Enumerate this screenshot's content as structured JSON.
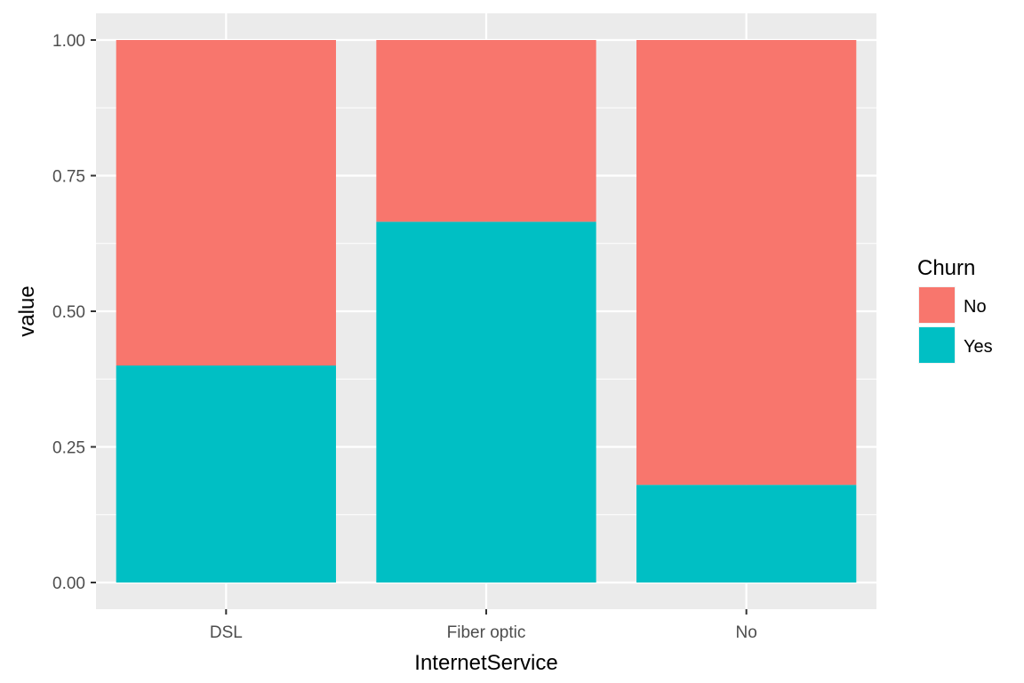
{
  "chart_data": {
    "type": "bar",
    "stacked": true,
    "xlabel": "InternetService",
    "ylabel": "value",
    "categories": [
      "DSL",
      "Fiber optic",
      "No"
    ],
    "ylim": [
      0,
      1
    ],
    "yticks": [
      "0.00",
      "0.25",
      "0.50",
      "0.75",
      "1.00"
    ],
    "ytick_values": [
      0,
      0.25,
      0.5,
      0.75,
      1
    ],
    "series": [
      {
        "name": "Yes",
        "values": [
          0.4,
          0.665,
          0.18
        ]
      },
      {
        "name": "No",
        "values": [
          0.6,
          0.335,
          0.82
        ]
      }
    ],
    "legend": {
      "title": "Churn",
      "entries": [
        "No",
        "Yes"
      ],
      "placement": "right"
    },
    "grid": true,
    "colors": {
      "No": "#F8766D",
      "Yes": "#00BFC4",
      "panel": "#EBEBEB",
      "grid": "#FFFFFF"
    }
  }
}
